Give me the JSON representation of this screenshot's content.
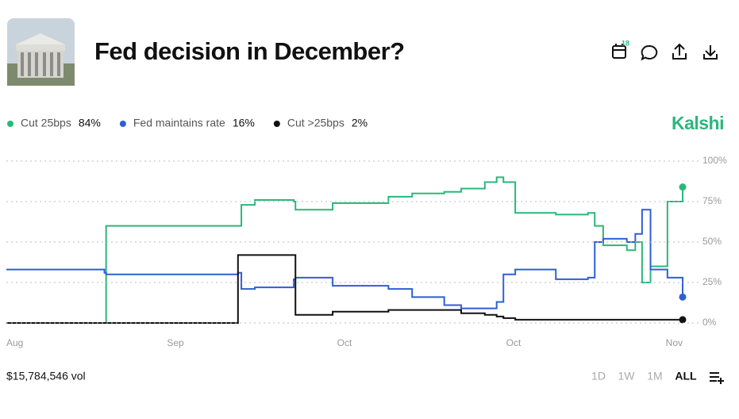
{
  "header": {
    "title": "Fed decision in December?",
    "calendar_badge": "18"
  },
  "brand": "Kalshi",
  "volume": "$15,784,546 vol",
  "ranges": [
    "1D",
    "1W",
    "1M",
    "ALL"
  ],
  "chart_data": {
    "type": "line",
    "step": true,
    "grid": true,
    "x": [
      0,
      5.8,
      5.9,
      13.7,
      13.9,
      14.7,
      17.0,
      17.1,
      19.3,
      22.6,
      24.0,
      25.9,
      26.9,
      28.3,
      29.0,
      29.4,
      30.1,
      32.5,
      34.4,
      34.8,
      35.3,
      36.7,
      37.2,
      37.6,
      38.1,
      39.1,
      40
    ],
    "xlim": [
      0,
      40
    ],
    "xticks": [
      {
        "value": 0.5,
        "label": "Aug"
      },
      {
        "value": 10,
        "label": "Sep"
      },
      {
        "value": 20,
        "label": "Oct"
      },
      {
        "value": 30,
        "label": "Oct"
      },
      {
        "value": 39.5,
        "label": "Nov"
      }
    ],
    "ylim": [
      0,
      100
    ],
    "yticks": [
      {
        "value": 0,
        "label": "0%"
      },
      {
        "value": 25,
        "label": "25%"
      },
      {
        "value": 50,
        "label": "50%"
      },
      {
        "value": 75,
        "label": "75%"
      },
      {
        "value": 100,
        "label": "100%"
      }
    ],
    "series": [
      {
        "name": "Cut 25bps",
        "color": "#2cb67d",
        "current": {
          "value": 84,
          "label": "84%"
        },
        "values": [
          0,
          0,
          60,
          60,
          73,
          76,
          75,
          70,
          74,
          78,
          80,
          81,
          83,
          87,
          90,
          87,
          68,
          67,
          68,
          60,
          48,
          45,
          50,
          25,
          35,
          75,
          84
        ]
      },
      {
        "name": "Fed maintains rate",
        "color": "#2f5fd6",
        "current": {
          "value": 16,
          "label": "16%"
        },
        "values": [
          33,
          31,
          30,
          31,
          21,
          22,
          27,
          28,
          23,
          21,
          16,
          11,
          9,
          9,
          13,
          30,
          33,
          27,
          28,
          50,
          52,
          50,
          55,
          70,
          33,
          28,
          16
        ]
      },
      {
        "name": "Cut >25bps",
        "color": "#111111",
        "current": {
          "value": 2,
          "label": "2%"
        },
        "values": [
          0,
          0,
          0,
          42,
          42,
          42,
          42,
          5,
          7,
          8,
          8,
          8,
          6,
          5,
          4,
          3,
          2,
          2,
          2,
          2,
          2,
          2,
          2,
          2,
          2,
          2,
          2
        ]
      }
    ]
  }
}
